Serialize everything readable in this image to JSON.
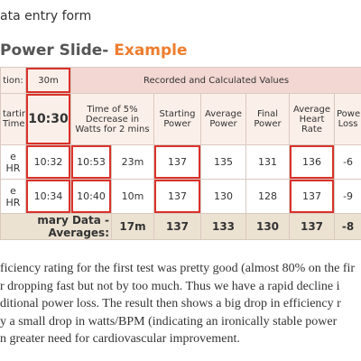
{
  "header": {
    "title": "ata entry form",
    "heading": "Power Slide-",
    "heading_accent": "Example"
  },
  "table": {
    "rows": [
      [
        "tion:",
        "30m",
        "Recorded and Calculated Values"
      ],
      [
        "tarting Time:",
        "10:30",
        "Time of 5% Decrease in Watts for 2 mins",
        "Starting Power",
        "Average Power",
        "Final Power",
        "Average Heart Rate",
        "Powe Loss"
      ],
      [
        "e HR",
        "10:32",
        "10:53",
        "23m",
        "137",
        "135",
        "131",
        "136",
        "-6"
      ],
      [
        "e HR",
        "10:34",
        "10:40",
        "10m",
        "137",
        "130",
        "128",
        "137",
        "-9"
      ],
      [
        "mary Data - Averages:",
        "17m",
        "137",
        "133",
        "130",
        "137",
        "-8"
      ]
    ]
  },
  "paragraph": [
    "ficiency rating for the first test was pretty good (almost 80% on the fir",
    "r dropping fast but not by too much. Thus we have a rapid decline i",
    "ditional power loss. The result then shows a big drop in efficiency r",
    "y a small drop in watts/BPM (indicating an ironically stable power",
    "n greater need for cardiovascular improvement."
  ]
}
